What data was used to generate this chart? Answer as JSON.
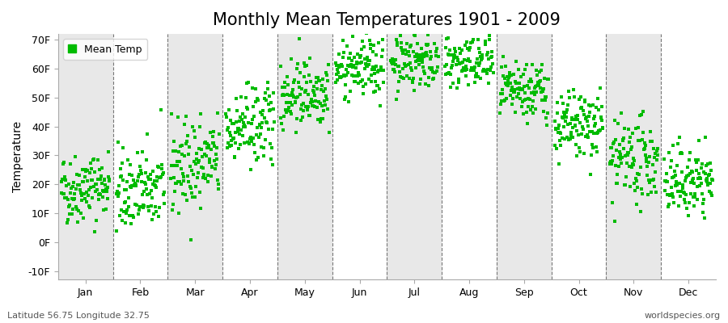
{
  "title": "Monthly Mean Temperatures 1901 - 2009",
  "ylabel": "Temperature",
  "ylim": [
    -13,
    72
  ],
  "yticks": [
    -10,
    0,
    10,
    20,
    30,
    40,
    50,
    60,
    70
  ],
  "ytick_labels": [
    "-10F",
    "0F",
    "10F",
    "20F",
    "30F",
    "40F",
    "50F",
    "60F",
    "70F"
  ],
  "months": [
    "Jan",
    "Feb",
    "Mar",
    "Apr",
    "May",
    "Jun",
    "Jul",
    "Aug",
    "Sep",
    "Oct",
    "Nov",
    "Dec"
  ],
  "month_means_F": [
    19,
    18,
    27,
    40,
    52,
    60,
    63,
    62,
    52,
    40,
    28,
    21
  ],
  "month_stds_F": [
    6,
    7,
    8,
    7,
    6,
    5,
    5,
    5,
    5,
    6,
    7,
    6
  ],
  "month_trend_F": [
    0.02,
    0.015,
    0.02,
    0.02,
    0.015,
    0.015,
    0.01,
    0.01,
    0.01,
    0.015,
    0.01,
    0.01
  ],
  "n_years": 109,
  "dot_color": "#00BB00",
  "dot_size": 12,
  "fig_bg_color": "#ffffff",
  "plot_bg_color": "#ffffff",
  "alt_band_color": "#e8e8e8",
  "grid_line_color": "#777777",
  "title_fontsize": 15,
  "axis_label_fontsize": 10,
  "tick_fontsize": 9,
  "footnote_left": "Latitude 56.75 Longitude 32.75",
  "footnote_right": "worldspecies.org",
  "legend_label": "Mean Temp",
  "random_seed": 42
}
